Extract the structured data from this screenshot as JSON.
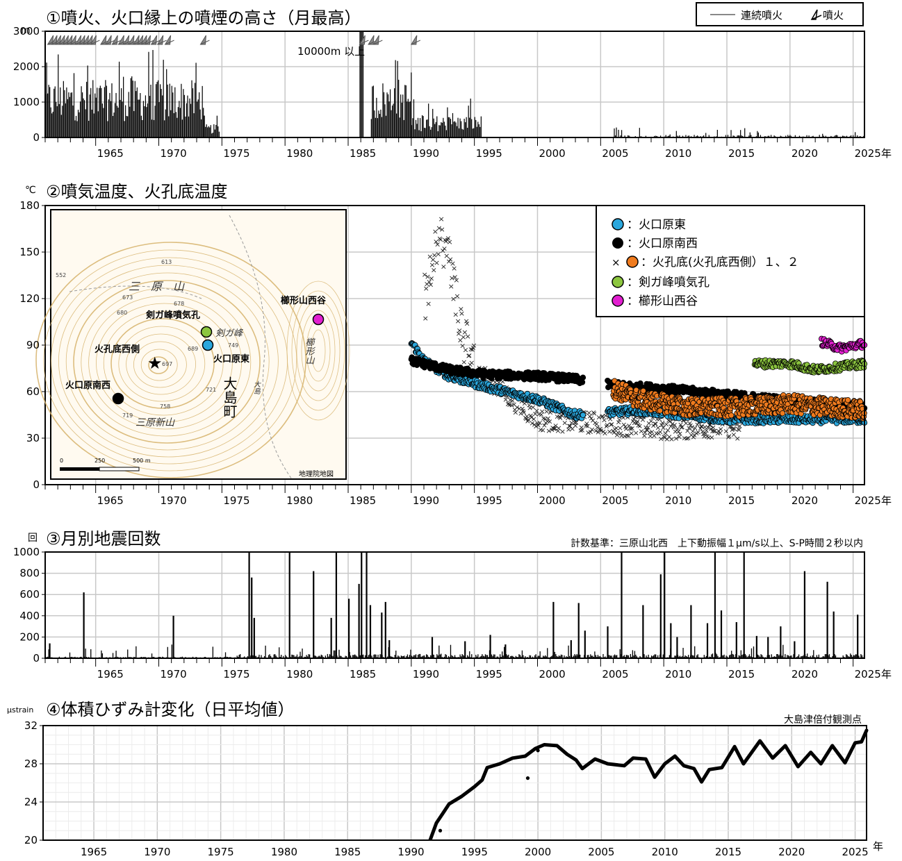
{
  "years": {
    "start": 1961,
    "end": 2025.9,
    "ticks": [
      1965,
      1970,
      1975,
      1980,
      1985,
      1990,
      1995,
      2000,
      2005,
      2010,
      2015,
      2020,
      2025
    ],
    "unit_suffix": "年"
  },
  "colors": {
    "bar": "#000000",
    "grid": "#cfcfcf",
    "blue": "#2aa7dd",
    "black": "#000000",
    "orange": "#f07b1e",
    "green": "#8cc63f",
    "magenta": "#e21fd0",
    "map_contour": "#d6b26a"
  },
  "panel1": {
    "title": "①噴火、火口縁上の噴煙の高さ（月最高）",
    "unit": "m",
    "legend": {
      "continuous": "連続噴火",
      "eruption": "噴火"
    },
    "annotation": "10000m 以上",
    "chart_data": {
      "type": "bar",
      "ylim": [
        0,
        3000
      ],
      "yticks": [
        0,
        1000,
        2000,
        3000
      ],
      "segments": [
        {
          "x_start": 1961,
          "x_end": 1973.5,
          "typical": 1300,
          "max": 2500
        },
        {
          "x_start": 1973.5,
          "x_end": 1974.8,
          "typical": 300,
          "max": 700
        },
        {
          "x_start": 1985.9,
          "x_end": 1986.2,
          "typical": 3000,
          "max": 3000
        },
        {
          "x_start": 1986.8,
          "x_end": 1990.0,
          "typical": 1300,
          "max": 2400
        },
        {
          "x_start": 1990.0,
          "x_end": 1995.5,
          "typical": 500,
          "max": 1100
        },
        {
          "x_start": 2005.8,
          "x_end": 2025.9,
          "typical": 60,
          "max": 300
        }
      ],
      "eruption_marks": [
        1961.2,
        1961.5,
        1961.8,
        1962.1,
        1962.4,
        1962.7,
        1963.0,
        1963.4,
        1963.7,
        1964.0,
        1964.3,
        1964.6,
        1965.4,
        1965.8,
        1966.3,
        1966.8,
        1967.2,
        1967.6,
        1968.0,
        1968.3,
        1968.6,
        1968.9,
        1969.4,
        1969.9,
        1970.5,
        1973.3,
        1985.9,
        1986.6,
        1987.0,
        1990.0
      ]
    }
  },
  "panel2": {
    "title": "②噴気温度、火孔底温度",
    "unit": "℃",
    "legend": [
      {
        "marker": "blue",
        "label": "：火口原東"
      },
      {
        "marker": "black",
        "label": "：火口原南西"
      },
      {
        "marker": "cross-orange",
        "label": "：火孔底(火孔底西側）１、２"
      },
      {
        "marker": "green",
        "label": "：剣ガ峰噴気孔"
      },
      {
        "marker": "magenta",
        "label": "：櫛形山西谷"
      }
    ],
    "map": {
      "labels": {
        "mihara": "三　原　山",
        "kengamine_vent": "剣ガ峰噴気孔",
        "kengamine": "剣ガ峰",
        "kushigata_west": "櫛形山西谷",
        "kushigata": "櫛形山",
        "kako_west": "火孔底西側",
        "east": "火口原東",
        "southwest": "火口原南西",
        "oshima": "大島町",
        "oshima_small": "大島",
        "shinzan": "三原新山",
        "gsi": "地理院地図"
      },
      "spot_heights": [
        "613",
        "552",
        "673",
        "678",
        "680",
        "689",
        "749",
        "697",
        "721",
        "758",
        "719"
      ],
      "scale": [
        "0",
        "250",
        "500 m"
      ]
    },
    "chart_data": {
      "type": "scatter",
      "ylim": [
        0,
        180
      ],
      "yticks": [
        0,
        30,
        60,
        90,
        120,
        150,
        180
      ],
      "series": [
        {
          "name": "火口原東",
          "color": "blue",
          "trend": [
            [
              1990.0,
              92
            ],
            [
              1991.0,
              80
            ],
            [
              1993.0,
              70
            ],
            [
              1996.0,
              63
            ],
            [
              2000.0,
              55
            ],
            [
              2003.0,
              45
            ],
            [
              2008.0,
              48
            ],
            [
              2015.0,
              42
            ],
            [
              2025.9,
              42
            ]
          ]
        },
        {
          "name": "火口原南西",
          "color": "black",
          "trend": [
            [
              1990.0,
              80
            ],
            [
              1993.0,
              74
            ],
            [
              1996.0,
              71
            ],
            [
              2000.0,
              70
            ],
            [
              2003.0,
              68
            ],
            [
              2006.0,
              64
            ],
            [
              2010.0,
              62
            ],
            [
              2015.0,
              58
            ],
            [
              2020.0,
              54
            ],
            [
              2025.9,
              50
            ]
          ]
        },
        {
          "name": "火孔底１",
          "color": "cross",
          "trend": [
            [
              1991.0,
              120
            ],
            [
              1992.0,
              160
            ],
            [
              1993.0,
              145
            ],
            [
              1994.0,
              95
            ],
            [
              1995.0,
              75
            ],
            [
              1998.0,
              55
            ],
            [
              2000.0,
              42
            ],
            [
              2005.0,
              40
            ],
            [
              2010.0,
              36
            ],
            [
              2015.0,
              38
            ],
            [
              2016.0,
              33
            ]
          ]
        },
        {
          "name": "火孔底２",
          "color": "orange",
          "trend": [
            [
              2006.0,
              62
            ],
            [
              2008.0,
              55
            ],
            [
              2012.0,
              50
            ],
            [
              2016.0,
              50
            ],
            [
              2020.0,
              52
            ],
            [
              2025.9,
              48
            ]
          ]
        },
        {
          "name": "剣ガ峰噴気孔",
          "color": "green",
          "trend": [
            [
              2017.2,
              78
            ],
            [
              2020.0,
              78
            ],
            [
              2022.0,
              74
            ],
            [
              2025.9,
              78
            ]
          ]
        },
        {
          "name": "櫛形山西谷",
          "color": "magenta",
          "trend": [
            [
              2022.5,
              92
            ],
            [
              2024.0,
              88
            ],
            [
              2025.9,
              91
            ]
          ]
        }
      ]
    }
  },
  "panel3": {
    "title": "③月別地震回数",
    "unit": "回",
    "criteria": "計数基準：三原山北西　上下動振幅１μm/s以上、S-P時間２秒以内",
    "chart_data": {
      "type": "bar",
      "ylim": [
        0,
        1000
      ],
      "yticks": [
        0,
        200,
        400,
        600,
        800,
        1000
      ],
      "spikes": [
        [
          1961.3,
          140
        ],
        [
          1964.0,
          620
        ],
        [
          1971.1,
          400
        ],
        [
          1977.1,
          1000
        ],
        [
          1977.3,
          760
        ],
        [
          1977.5,
          380
        ],
        [
          1980.3,
          1000
        ],
        [
          1982.2,
          820
        ],
        [
          1983.6,
          380
        ],
        [
          1984.0,
          1000
        ],
        [
          1985.0,
          560
        ],
        [
          1985.8,
          700
        ],
        [
          1986.0,
          1000
        ],
        [
          1986.4,
          1000
        ],
        [
          1986.7,
          500
        ],
        [
          1987.6,
          430
        ],
        [
          1987.9,
          530
        ],
        [
          1988.2,
          170
        ],
        [
          1991.6,
          200
        ],
        [
          1994.2,
          160
        ],
        [
          1996.2,
          220
        ],
        [
          1997.4,
          130
        ],
        [
          2001.2,
          530
        ],
        [
          2002.6,
          170
        ],
        [
          2003.2,
          520
        ],
        [
          2003.7,
          260
        ],
        [
          2005.5,
          300
        ],
        [
          2006.6,
          1000
        ],
        [
          2008.3,
          500
        ],
        [
          2009.7,
          790
        ],
        [
          2010.0,
          1000
        ],
        [
          2010.5,
          330
        ],
        [
          2011.0,
          200
        ],
        [
          2012.1,
          500
        ],
        [
          2013.4,
          330
        ],
        [
          2014.0,
          1000
        ],
        [
          2014.5,
          450
        ],
        [
          2015.7,
          340
        ],
        [
          2016.3,
          1000
        ],
        [
          2017.3,
          210
        ],
        [
          2018.2,
          200
        ],
        [
          2019.2,
          300
        ],
        [
          2020.3,
          160
        ],
        [
          2021.1,
          820
        ],
        [
          2022.9,
          720
        ],
        [
          2023.4,
          440
        ],
        [
          2025.3,
          410
        ]
      ]
    }
  },
  "panel4": {
    "title": "④体積ひずみ計変化（日平均値）",
    "unit": "μstrain",
    "station": "大島津倍付観測点",
    "chart_data": {
      "type": "line",
      "ylim": [
        20,
        32
      ],
      "yticks": [
        20,
        24,
        28,
        32
      ],
      "points": [
        [
          1991.5,
          20.0
        ],
        [
          1992.0,
          21.8
        ],
        [
          1992.5,
          22.8
        ],
        [
          1993.0,
          23.8
        ],
        [
          1994.0,
          24.6
        ],
        [
          1995.0,
          25.6
        ],
        [
          1995.6,
          26.3
        ],
        [
          1996.0,
          27.6
        ],
        [
          1997.0,
          28.0
        ],
        [
          1998.0,
          28.6
        ],
        [
          1999.0,
          28.8
        ],
        [
          1999.8,
          29.6
        ],
        [
          2000.5,
          30.0
        ],
        [
          2001.5,
          29.9
        ],
        [
          2002.3,
          29.0
        ],
        [
          2003.0,
          28.4
        ],
        [
          2003.5,
          27.5
        ],
        [
          2004.5,
          28.5
        ],
        [
          2005.5,
          28.0
        ],
        [
          2006.8,
          27.8
        ],
        [
          2007.5,
          28.6
        ],
        [
          2008.5,
          28.5
        ],
        [
          2009.2,
          26.6
        ],
        [
          2010.0,
          28.0
        ],
        [
          2010.8,
          28.8
        ],
        [
          2011.5,
          27.8
        ],
        [
          2012.3,
          27.5
        ],
        [
          2012.9,
          26.1
        ],
        [
          2013.5,
          27.4
        ],
        [
          2014.5,
          27.6
        ],
        [
          2015.5,
          29.8
        ],
        [
          2016.2,
          28.0
        ],
        [
          2017.5,
          30.4
        ],
        [
          2018.5,
          28.6
        ],
        [
          2019.5,
          29.9
        ],
        [
          2020.5,
          27.7
        ],
        [
          2021.5,
          29.2
        ],
        [
          2022.3,
          28.0
        ],
        [
          2023.2,
          29.9
        ],
        [
          2024.2,
          28.1
        ],
        [
          2025.0,
          30.2
        ],
        [
          2025.5,
          30.3
        ],
        [
          2025.9,
          31.5
        ]
      ],
      "isolated_points": [
        [
          1999.2,
          26.5
        ],
        [
          2000.0,
          29.4
        ],
        [
          1992.3,
          21.0
        ]
      ]
    }
  }
}
